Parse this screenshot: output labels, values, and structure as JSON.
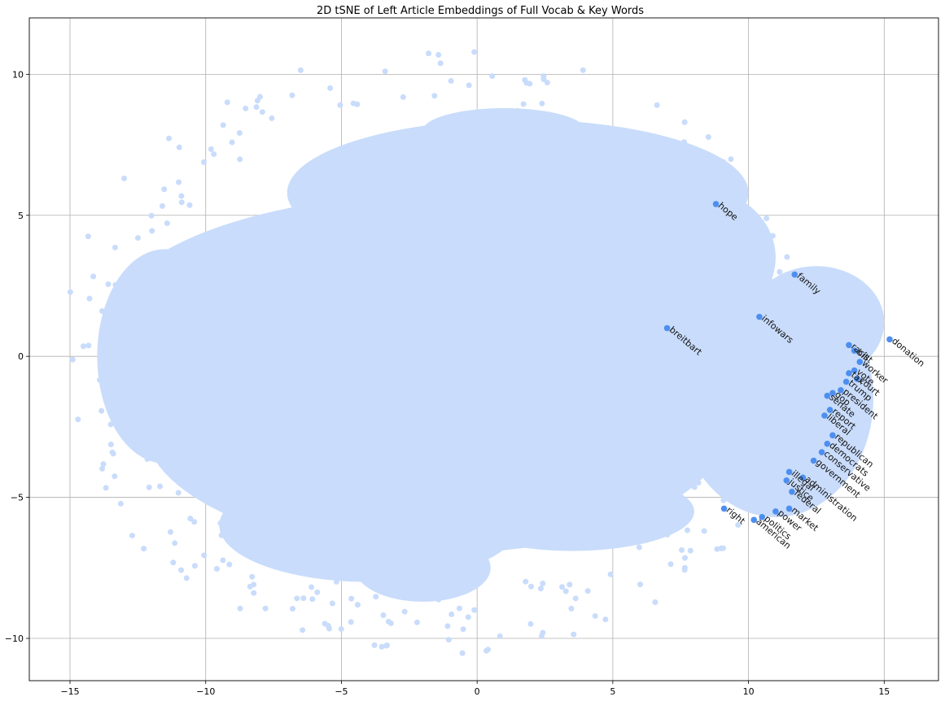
{
  "chart_data": {
    "type": "scatter",
    "title": "2D tSNE of Left Article Embeddings of Full Vocab & Key Words",
    "xlabel": "",
    "ylabel": "",
    "xlim": [
      -16.5,
      17
    ],
    "ylim": [
      -11.5,
      12
    ],
    "xticks": [
      -15,
      -10,
      -5,
      0,
      5,
      10,
      15
    ],
    "yticks": [
      -10,
      -5,
      0,
      5,
      10
    ],
    "grid": true,
    "colors": {
      "background_points": "#c9dcfb",
      "key_points": "#4d8ff0"
    },
    "background_region": {
      "description": "dense cloud of full-vocab points",
      "x_range": [
        -15,
        15.5
      ],
      "y_range": [
        -10.5,
        10.9
      ]
    },
    "series": [
      {
        "points": [
          {
            "label": "hope",
            "x": 8.8,
            "y": 5.4
          },
          {
            "label": "family",
            "x": 11.7,
            "y": 2.9
          },
          {
            "label": "infowars",
            "x": 10.4,
            "y": 1.4
          },
          {
            "label": "breitbart",
            "x": 7.0,
            "y": 1.0
          },
          {
            "label": "donation",
            "x": 15.2,
            "y": 0.6
          },
          {
            "label": "racist",
            "x": 13.7,
            "y": 0.4
          },
          {
            "label": "bill",
            "x": 13.9,
            "y": 0.2
          },
          {
            "label": "worker",
            "x": 14.1,
            "y": -0.2
          },
          {
            "label": "vote",
            "x": 13.9,
            "y": -0.5
          },
          {
            "label": "tax",
            "x": 13.7,
            "y": -0.6
          },
          {
            "label": "court",
            "x": 14.0,
            "y": -0.8
          },
          {
            "label": "trump",
            "x": 13.6,
            "y": -0.9
          },
          {
            "label": "president",
            "x": 13.4,
            "y": -1.2
          },
          {
            "label": "gop",
            "x": 13.1,
            "y": -1.3
          },
          {
            "label": "senate",
            "x": 12.9,
            "y": -1.4
          },
          {
            "label": "report",
            "x": 13.0,
            "y": -1.9
          },
          {
            "label": "liberal",
            "x": 12.8,
            "y": -2.1
          },
          {
            "label": "republican",
            "x": 13.1,
            "y": -2.8
          },
          {
            "label": "democrats",
            "x": 12.9,
            "y": -3.1
          },
          {
            "label": "conservative",
            "x": 12.7,
            "y": -3.4
          },
          {
            "label": "government",
            "x": 12.4,
            "y": -3.7
          },
          {
            "label": "administration",
            "x": 12.0,
            "y": -4.3
          },
          {
            "label": "illegal",
            "x": 11.5,
            "y": -4.1
          },
          {
            "label": "justice",
            "x": 11.4,
            "y": -4.4
          },
          {
            "label": "federal",
            "x": 11.6,
            "y": -4.8
          },
          {
            "label": "market",
            "x": 11.5,
            "y": -5.4
          },
          {
            "label": "power",
            "x": 11.0,
            "y": -5.5
          },
          {
            "label": "right",
            "x": 9.1,
            "y": -5.4
          },
          {
            "label": "politics",
            "x": 10.5,
            "y": -5.7
          },
          {
            "label": "american",
            "x": 10.2,
            "y": -5.8
          }
        ]
      }
    ]
  }
}
